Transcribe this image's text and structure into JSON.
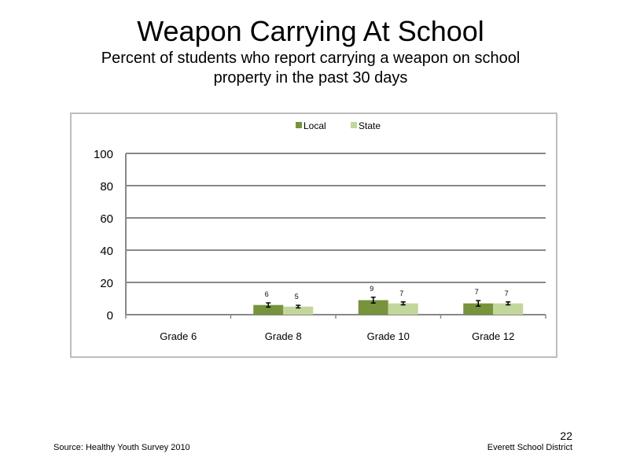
{
  "slide": {
    "title": "Weapon Carrying At School",
    "subtitle": "Percent of students who report carrying a weapon on school property in the past 30 days",
    "source": "Source: Healthy Youth Survey 2010",
    "district": "Everett School District",
    "page_number": "22"
  },
  "chart_data": {
    "type": "bar",
    "title": "",
    "xlabel": "",
    "ylabel": "",
    "ylim": [
      0,
      100
    ],
    "yticks": [
      0,
      20,
      40,
      60,
      80,
      100
    ],
    "grid": true,
    "legend_position": "top",
    "categories": [
      "Grade 6",
      "Grade 8",
      "Grade 10",
      "Grade 12"
    ],
    "series": [
      {
        "name": "Local",
        "color": "#77933c",
        "values": [
          null,
          6,
          9,
          7
        ],
        "labels": [
          "",
          "6",
          "9",
          "7"
        ],
        "errors": [
          null,
          1.3,
          1.8,
          1.7
        ]
      },
      {
        "name": "State",
        "color": "#c3d69b",
        "values": [
          null,
          5,
          7,
          7
        ],
        "labels": [
          "",
          "5",
          "7",
          "7"
        ],
        "errors": [
          null,
          0.8,
          0.9,
          0.9
        ]
      }
    ]
  }
}
